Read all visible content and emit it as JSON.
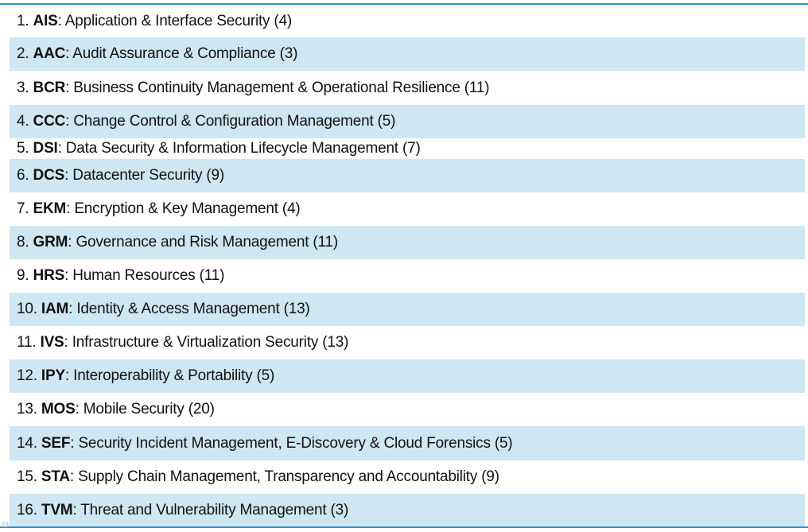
{
  "page_number": "23",
  "items": [
    {
      "num": "1.",
      "code": "AIS",
      "desc": ": Application & Interface Security (4)"
    },
    {
      "num": "2.",
      "code": "AAC",
      "desc": ": Audit Assurance & Compliance (3)"
    },
    {
      "num": "3.",
      "code": "BCR",
      "desc": ": Business Continuity Management & Operational Resilience (11)"
    },
    {
      "num": "4.",
      "code": "CCC",
      "desc": ": Change Control & Configuration Management (5)"
    },
    {
      "num": "5.",
      "code": "DSI",
      "desc": ": Data Security & Information Lifecycle Management (7)"
    },
    {
      "num": "6.",
      "code": "DCS",
      "desc": ": Datacenter Security (9)"
    },
    {
      "num": "7.",
      "code": "EKM",
      "desc": ": Encryption & Key Management (4)"
    },
    {
      "num": "8.",
      "code": "GRM",
      "desc": ": Governance and Risk Management (11)"
    },
    {
      "num": "9.",
      "code": "HRS",
      "desc": ": Human Resources (11)"
    },
    {
      "num": "10.",
      "code": "IAM",
      "desc": ": Identity & Access Management (13)"
    },
    {
      "num": "11.",
      "code": "IVS",
      "desc": ": Infrastructure & Virtualization Security (13)"
    },
    {
      "num": "12.",
      "code": "IPY",
      "desc": ": Interoperability & Portability (5)"
    },
    {
      "num": "13.",
      "code": "MOS",
      "desc": ": Mobile Security (20)"
    },
    {
      "num": "14.",
      "code": "SEF",
      "desc": ": Security Incident Management, E-Discovery & Cloud Forensics (5)"
    },
    {
      "num": "15.",
      "code": "STA",
      "desc": ": Supply Chain Management, Transparency and Accountability (9)"
    },
    {
      "num": "16.",
      "code": "TVM",
      "desc": ": Threat and Vulnerability Management (3)"
    }
  ]
}
